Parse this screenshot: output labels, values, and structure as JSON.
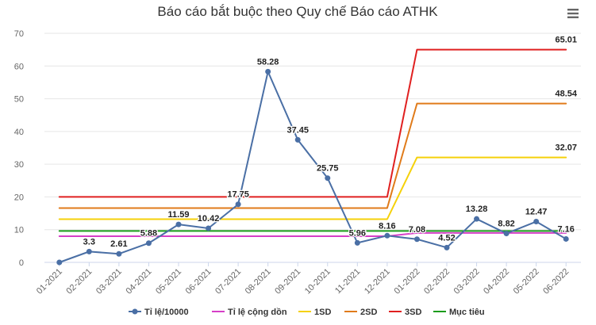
{
  "icons": {
    "menu": "hamburger-menu-icon"
  },
  "chart_data": {
    "type": "line",
    "title": "Báo cáo bắt buộc theo Quy chế Báo cáo ATHK",
    "xlabel": "",
    "ylabel": "",
    "ylim": [
      0,
      70
    ],
    "yticks": [
      "0",
      "10",
      "20",
      "30",
      "40",
      "50",
      "60",
      "70"
    ],
    "grid": true,
    "legend_position": "bottom",
    "categories": [
      "01-2021",
      "02-2021",
      "03-2021",
      "04-2021",
      "05-2021",
      "06-2021",
      "07-2021",
      "08-2021",
      "09-2021",
      "10-2021",
      "11-2021",
      "12-2021",
      "01-2022",
      "02-2022",
      "03-2022",
      "04-2022",
      "05-2022",
      "06-2022"
    ],
    "series": [
      {
        "name": "Tỉ lệ/10000",
        "color": "#4a6fa5",
        "markers": true,
        "values": [
          0,
          3.3,
          2.61,
          5.88,
          11.59,
          10.42,
          17.75,
          58.28,
          37.45,
          25.75,
          5.96,
          8.16,
          7.08,
          4.52,
          13.28,
          8.82,
          12.47,
          7.16
        ],
        "labels": [
          "",
          "3.3",
          "2.61",
          "5.88",
          "11.59",
          "10.42",
          "17.75",
          "58.28",
          "37.45",
          "25.75",
          "5.96",
          "8.16",
          "7.08",
          "4.52",
          "13.28",
          "8.82",
          "12.47",
          "7.16"
        ]
      },
      {
        "name": "Tỉ lệ cộng dồn",
        "color": "#d63fc7",
        "markers": false,
        "values": [
          8.0,
          8.0,
          8.0,
          8.0,
          8.0,
          8.0,
          8.0,
          8.0,
          8.0,
          8.0,
          8.0,
          8.0,
          9.0,
          9.0,
          9.0,
          9.0,
          9.0,
          9.0
        ]
      },
      {
        "name": "1SD",
        "color": "#f5d10a",
        "markers": false,
        "values": [
          13.2,
          13.2,
          13.2,
          13.2,
          13.2,
          13.2,
          13.2,
          13.2,
          13.2,
          13.2,
          13.2,
          13.2,
          32.07,
          32.07,
          32.07,
          32.07,
          32.07,
          32.07
        ],
        "end_label": "32.07"
      },
      {
        "name": "2SD",
        "color": "#e07b1a",
        "markers": false,
        "values": [
          16.6,
          16.6,
          16.6,
          16.6,
          16.6,
          16.6,
          16.6,
          16.6,
          16.6,
          16.6,
          16.6,
          16.6,
          48.54,
          48.54,
          48.54,
          48.54,
          48.54,
          48.54
        ],
        "end_label": "48.54"
      },
      {
        "name": "3SD",
        "color": "#e02020",
        "markers": false,
        "values": [
          20.0,
          20.0,
          20.0,
          20.0,
          20.0,
          20.0,
          20.0,
          20.0,
          20.0,
          20.0,
          20.0,
          20.0,
          65.01,
          65.01,
          65.01,
          65.01,
          65.01,
          65.01
        ],
        "end_label": "65.01"
      },
      {
        "name": "Mục tiêu",
        "color": "#1a9c1a",
        "markers": false,
        "values": [
          9.6,
          9.6,
          9.6,
          9.6,
          9.6,
          9.6,
          9.6,
          9.6,
          9.6,
          9.6,
          9.6,
          9.6,
          9.6,
          9.6,
          9.6,
          9.6,
          9.6,
          9.6
        ]
      }
    ]
  }
}
